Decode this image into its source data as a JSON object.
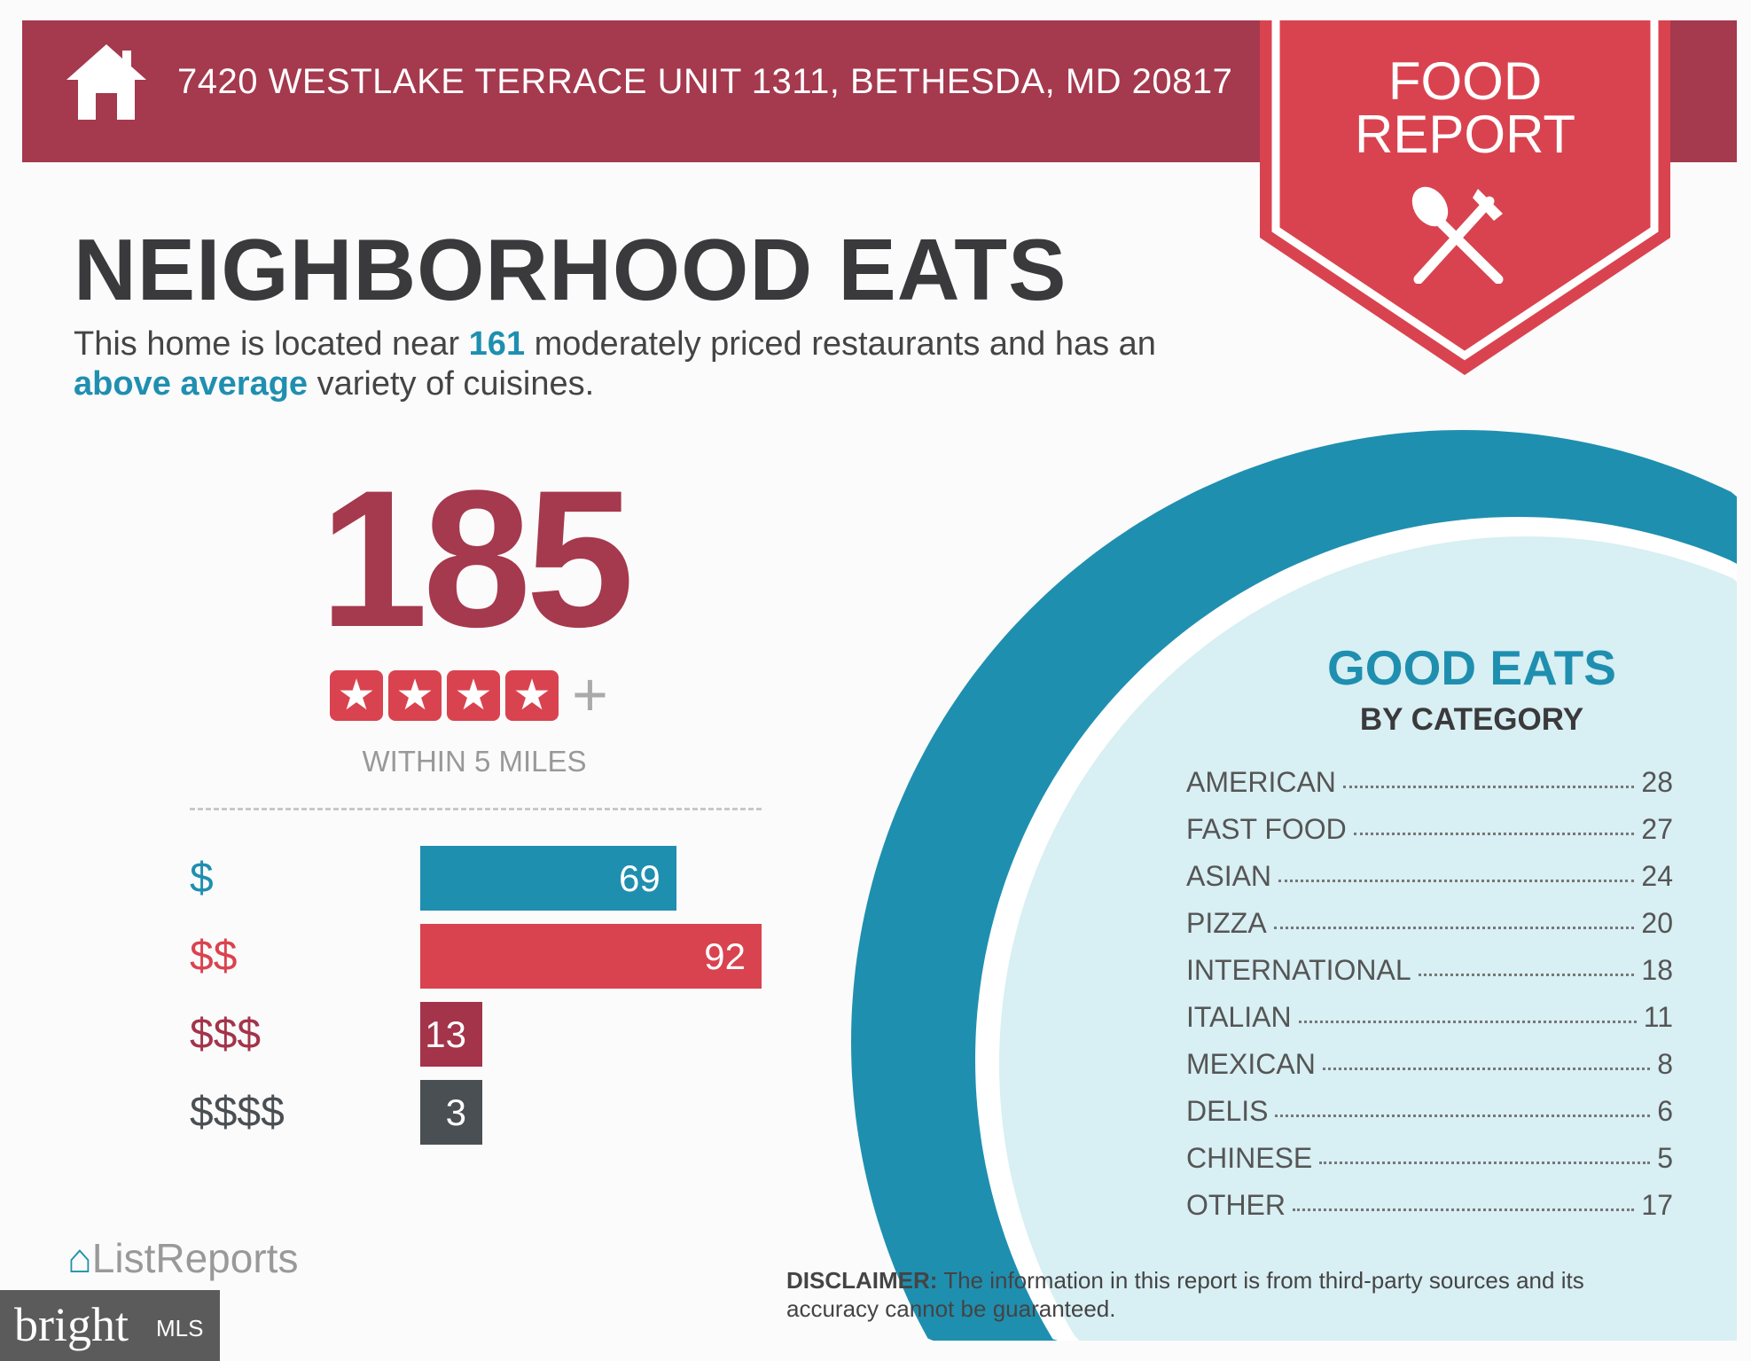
{
  "header": {
    "address": "7420 WESTLAKE TERRACE UNIT 1311, BETHESDA, MD 20817",
    "home_icon": "house-icon"
  },
  "badge": {
    "line1": "FOOD",
    "line2": "REPORT",
    "icon": "spoon-fork-icon"
  },
  "title": "NEIGHBORHOOD EATS",
  "summary": {
    "pre": "This home is located near ",
    "count": "161",
    "mid": " moderately priced restaurants and has an ",
    "variety": "above average",
    "post": " variety of cuisines."
  },
  "total": {
    "count": "185",
    "rating_stars": 4,
    "plus": "+",
    "radius": "WITHIN 5 MILES"
  },
  "price_tiers": [
    {
      "label": "$",
      "value": 69,
      "color": "#1f8fb0",
      "text": "69"
    },
    {
      "label": "$$",
      "value": 92,
      "color": "#d9434f",
      "text": "92"
    },
    {
      "label": "$$$",
      "value": 13,
      "color": "#a3344a",
      "text": "13"
    },
    {
      "label": "$$$$",
      "value": 3,
      "color": "#4a4f53",
      "text": "3"
    }
  ],
  "good_eats": {
    "title": "GOOD EATS",
    "subtitle": "BY CATEGORY",
    "categories": [
      {
        "name": "AMERICAN",
        "count": "28"
      },
      {
        "name": "FAST FOOD",
        "count": "27"
      },
      {
        "name": "ASIAN",
        "count": "24"
      },
      {
        "name": "PIZZA",
        "count": "20"
      },
      {
        "name": "INTERNATIONAL",
        "count": "18"
      },
      {
        "name": "ITALIAN",
        "count": "11"
      },
      {
        "name": "MEXICAN",
        "count": "8"
      },
      {
        "name": "DELIS",
        "count": "6"
      },
      {
        "name": "CHINESE",
        "count": "5"
      },
      {
        "name": "OTHER",
        "count": "17"
      }
    ]
  },
  "footer": {
    "disclaimer_label": "DISCLAIMER:",
    "disclaimer_text": " The information in this report is from third-party sources and its accuracy cannot be guaranteed.",
    "brand": "ListReports",
    "watermark": "bright",
    "watermark_mls": "MLS"
  },
  "colors": {
    "header": "#a5394e",
    "badge": "#d9434f",
    "teal": "#1f8fb0",
    "light": "#d8eff3"
  }
}
